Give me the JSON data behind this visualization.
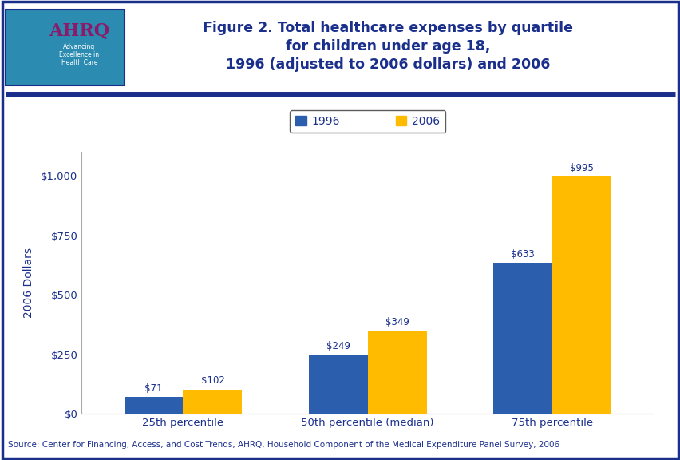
{
  "title_line1": "Figure 2. Total healthcare expenses by quartile",
  "title_line2": "for children under age 18,",
  "title_line3": "1996 (adjusted to 2006 dollars) and 2006",
  "title_color": "#1A2F8C",
  "title_fontsize": 12.5,
  "ylabel": "2006 Dollars",
  "ylabel_color": "#1A2F8C",
  "ylabel_fontsize": 10,
  "categories": [
    "25th percentile",
    "50th percentile (median)",
    "75th percentile"
  ],
  "series": [
    {
      "label": "1996",
      "values": [
        71,
        249,
        633
      ],
      "color": "#2B5EAD"
    },
    {
      "label": "2006",
      "values": [
        102,
        349,
        995
      ],
      "color": "#FFBB00"
    }
  ],
  "value_labels": [
    [
      "$71",
      "$102"
    ],
    [
      "$249",
      "$349"
    ],
    [
      "$633",
      "$995"
    ]
  ],
  "ylim": [
    0,
    1100
  ],
  "yticks": [
    0,
    250,
    500,
    750,
    1000
  ],
  "ytick_labels": [
    "$0",
    "$250",
    "$500",
    "$750",
    "$1,000"
  ],
  "source_text": "Source: Center for Financing, Access, and Cost Trends, AHRQ, Household Component of the Medical Expenditure Panel Survey, 2006",
  "source_color": "#1A2F8C",
  "source_fontsize": 7.5,
  "background_color": "#FFFFFF",
  "border_color": "#1A2F8C",
  "bar_width": 0.32,
  "tick_label_color": "#1A2F8C",
  "tick_label_fontsize": 9.5,
  "value_label_color": "#1A2F8C",
  "value_label_fontsize": 8.5,
  "header_bg": "#FFFFFF",
  "divider_color": "#1A2F8C",
  "divider_linewidth": 5,
  "logo_bg": "#2B8BB0",
  "chart_bg": "#FFFFFF"
}
